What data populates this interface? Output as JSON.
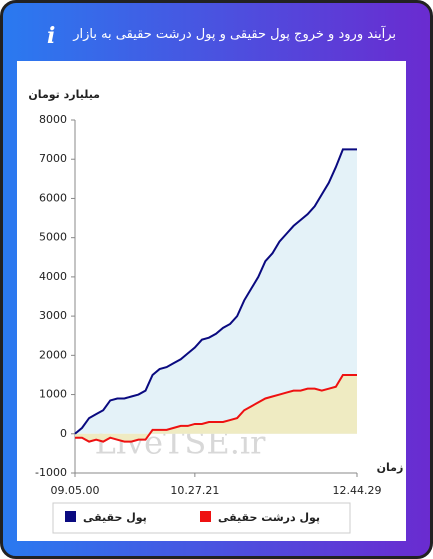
{
  "header": {
    "title": "برآیند ورود و خروج پول حقیقی و پول درشت حقیقی به بازار"
  },
  "chart_data": {
    "type": "line",
    "y_label": "میلیارد تومان",
    "x_label": "زمان",
    "watermark": "LiveTSE.ir",
    "categories": [
      "09.05.00",
      null,
      null,
      null,
      null,
      null,
      null,
      null,
      null,
      null,
      null,
      null,
      null,
      null,
      null,
      null,
      null,
      "10.27.21",
      null,
      null,
      null,
      null,
      null,
      null,
      null,
      null,
      null,
      null,
      null,
      null,
      null,
      null,
      null,
      null,
      null,
      null,
      null,
      null,
      null,
      null,
      "12.44.29"
    ],
    "series": [
      {
        "name": "پول حقیقی",
        "color": "#0a0a80",
        "fill": "#e4f2f8",
        "values": [
          0,
          150,
          400,
          500,
          600,
          850,
          900,
          900,
          950,
          1000,
          1100,
          1500,
          1650,
          1700,
          1800,
          1900,
          2050,
          2200,
          2400,
          2450,
          2550,
          2700,
          2800,
          3000,
          3400,
          3700,
          4000,
          4400,
          4600,
          4900,
          5100,
          5300,
          5450,
          5600,
          5800,
          6100,
          6400,
          6800,
          7250,
          7250,
          7250
        ]
      },
      {
        "name": "پول درشت حقیقی",
        "color": "#ee1111",
        "fill": "#efebc2",
        "values": [
          -100,
          -100,
          -200,
          -150,
          -200,
          -100,
          -150,
          -200,
          -200,
          -150,
          -150,
          100,
          100,
          100,
          150,
          200,
          200,
          250,
          250,
          300,
          300,
          300,
          350,
          400,
          600,
          700,
          800,
          900,
          950,
          1000,
          1050,
          1100,
          1100,
          1150,
          1150,
          1100,
          1150,
          1200,
          1500,
          1500,
          1500
        ]
      }
    ],
    "ylim": [
      -1000,
      8000
    ],
    "yticks": [
      -1000,
      0,
      1000,
      2000,
      3000,
      4000,
      5000,
      6000,
      7000,
      8000
    ],
    "grid": false
  }
}
